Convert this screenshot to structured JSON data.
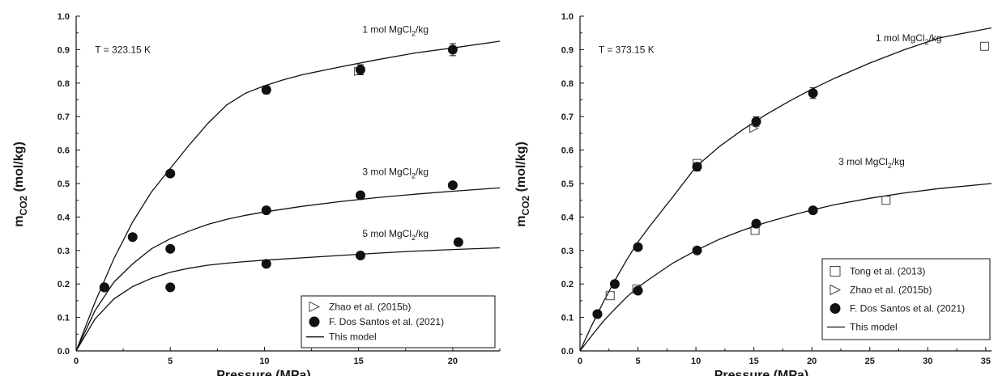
{
  "chart_data": [
    {
      "type": "scatter",
      "xlabel": "Pressure (MPa)",
      "ylabel": {
        "main": "m",
        "sub": "CO2",
        "unit": " (mol/kg)"
      },
      "xlim": [
        0,
        22.5
      ],
      "ylim": [
        0,
        1.0
      ],
      "xticks": [
        0,
        5,
        10,
        15,
        20
      ],
      "yticks": [
        0.0,
        0.1,
        0.2,
        0.3,
        0.4,
        0.5,
        0.6,
        0.7,
        0.8,
        0.9,
        1.0
      ],
      "annotations": [
        {
          "text": "T = 323.15 K",
          "x": 1.0,
          "y": 0.89
        },
        {
          "pre": "1 mol MgCl",
          "sub": "2",
          "post": "/kg",
          "x": 15.2,
          "y": 0.95
        },
        {
          "pre": "3 mol MgCl",
          "sub": "2",
          "post": "/kg",
          "x": 15.2,
          "y": 0.525
        },
        {
          "pre": "5 mol MgCl",
          "sub": "2",
          "post": "/kg",
          "x": 15.2,
          "y": 0.34
        }
      ],
      "legend": {
        "position": "bottom-right",
        "entries": [
          {
            "marker": "triangle-right-open",
            "label": "Zhao et al. (2015b)"
          },
          {
            "marker": "circle-filled",
            "label": "F. Dos Santos et al. (2021)"
          },
          {
            "marker": "line",
            "label": "This model"
          }
        ]
      },
      "series": [
        {
          "name": "Zhao et al. (2015b)",
          "marker": "triangle-right-open",
          "x": [
            15.0
          ],
          "y": [
            0.835
          ]
        },
        {
          "name": "F. Dos Santos et al. (2021)",
          "marker": "circle-filled",
          "x": [
            1.5,
            3.0,
            5.0,
            10.1,
            15.1,
            20.0,
            1.5,
            5.0,
            10.1,
            15.1,
            20.0,
            1.5,
            5.0,
            10.1,
            15.1,
            20.3
          ],
          "y": [
            0.19,
            0.34,
            0.53,
            0.78,
            0.84,
            0.9,
            0.19,
            0.305,
            0.42,
            0.465,
            0.495,
            0.19,
            0.19,
            0.26,
            0.285,
            0.325
          ],
          "yerr": [
            0,
            0,
            0.008,
            0.012,
            0.015,
            0.018,
            0,
            0,
            0,
            0,
            0,
            0,
            0,
            0,
            0,
            0
          ]
        },
        {
          "name": "This model",
          "marker": "line",
          "curves": [
            {
              "x": [
                0,
                1,
                2,
                3,
                4,
                5,
                6,
                7,
                8,
                9,
                10,
                11,
                12,
                14,
                16,
                18,
                20,
                22.5
              ],
              "y": [
                0,
                0.145,
                0.275,
                0.385,
                0.475,
                0.545,
                0.615,
                0.68,
                0.735,
                0.77,
                0.792,
                0.81,
                0.825,
                0.848,
                0.87,
                0.89,
                0.905,
                0.925
              ]
            },
            {
              "x": [
                0,
                1,
                2,
                3,
                4,
                5,
                6,
                7,
                8,
                9,
                10,
                12,
                14,
                16,
                18,
                20,
                22.5
              ],
              "y": [
                0,
                0.12,
                0.205,
                0.26,
                0.305,
                0.335,
                0.358,
                0.378,
                0.393,
                0.405,
                0.415,
                0.432,
                0.446,
                0.458,
                0.468,
                0.477,
                0.487
              ]
            },
            {
              "x": [
                0,
                1,
                2,
                3,
                4,
                5,
                6,
                7,
                8,
                9,
                10,
                12,
                14,
                16,
                18,
                20,
                22.5
              ],
              "y": [
                0,
                0.095,
                0.155,
                0.192,
                0.217,
                0.235,
                0.247,
                0.256,
                0.262,
                0.267,
                0.271,
                0.278,
                0.285,
                0.292,
                0.298,
                0.303,
                0.308
              ]
            }
          ]
        }
      ]
    },
    {
      "type": "scatter",
      "xlabel": "Pressure (MPa)",
      "ylabel": {
        "main": "m",
        "sub": "CO2",
        "unit": " (mol/kg)"
      },
      "xlim": [
        0,
        35.5
      ],
      "ylim": [
        0,
        1.0
      ],
      "xticks": [
        0,
        5,
        10,
        15,
        20,
        25,
        30,
        35
      ],
      "yticks": [
        0.0,
        0.1,
        0.2,
        0.3,
        0.4,
        0.5,
        0.6,
        0.7,
        0.8,
        0.9,
        1.0
      ],
      "annotations": [
        {
          "text": "T = 373.15 K",
          "x": 1.6,
          "y": 0.89
        },
        {
          "pre": "1 mol MgCl",
          "sub": "2",
          "post": "/kg",
          "x": 25.5,
          "y": 0.925
        },
        {
          "pre": "3 mol MgCl",
          "sub": "2",
          "post": "/kg",
          "x": 22.3,
          "y": 0.555
        }
      ],
      "legend": {
        "position": "bottom-right",
        "entries": [
          {
            "marker": "square-open",
            "label": "Tong et al. (2013)"
          },
          {
            "marker": "triangle-right-open",
            "label": "Zhao et al. (2015b)"
          },
          {
            "marker": "circle-filled",
            "label": "F. Dos Santos et al. (2021)"
          },
          {
            "marker": "line",
            "label": "This model"
          }
        ]
      },
      "series": [
        {
          "name": "Tong et al. (2013)",
          "marker": "square-open",
          "x": [
            2.6,
            4.9,
            10.1,
            15.1,
            26.4,
            34.9
          ],
          "y": [
            0.165,
            0.185,
            0.56,
            0.36,
            0.45,
            0.91
          ]
        },
        {
          "name": "Zhao et al. (2015b)",
          "marker": "triangle-right-open",
          "x": [
            15.0
          ],
          "y": [
            0.665
          ]
        },
        {
          "name": "F. Dos Santos et al. (2021)",
          "marker": "circle-filled",
          "x": [
            1.5,
            3.0,
            5.0,
            10.1,
            15.2,
            20.1,
            1.5,
            5.0,
            10.1,
            15.2,
            20.1
          ],
          "y": [
            0.11,
            0.2,
            0.31,
            0.55,
            0.685,
            0.77,
            0.11,
            0.18,
            0.3,
            0.38,
            0.42
          ],
          "yerr": [
            0,
            0,
            0,
            0.012,
            0.014,
            0.016,
            0,
            0,
            0,
            0,
            0
          ]
        },
        {
          "name": "This model",
          "marker": "line",
          "curves": [
            {
              "x": [
                0,
                1,
                2,
                3,
                4,
                5,
                6,
                8,
                10,
                12,
                14,
                16,
                18,
                20,
                22,
                25,
                28,
                31,
                35.5
              ],
              "y": [
                0,
                0.075,
                0.145,
                0.21,
                0.27,
                0.325,
                0.372,
                0.46,
                0.55,
                0.61,
                0.66,
                0.705,
                0.745,
                0.782,
                0.815,
                0.86,
                0.9,
                0.935,
                0.965
              ]
            },
            {
              "x": [
                0,
                1,
                2,
                3,
                4,
                5,
                6,
                8,
                10,
                12,
                14,
                16,
                18,
                20,
                22,
                25,
                28,
                31,
                35.5
              ],
              "y": [
                0,
                0.045,
                0.088,
                0.125,
                0.16,
                0.19,
                0.215,
                0.262,
                0.3,
                0.333,
                0.36,
                0.383,
                0.403,
                0.421,
                0.437,
                0.456,
                0.472,
                0.485,
                0.5
              ]
            }
          ]
        }
      ]
    }
  ]
}
